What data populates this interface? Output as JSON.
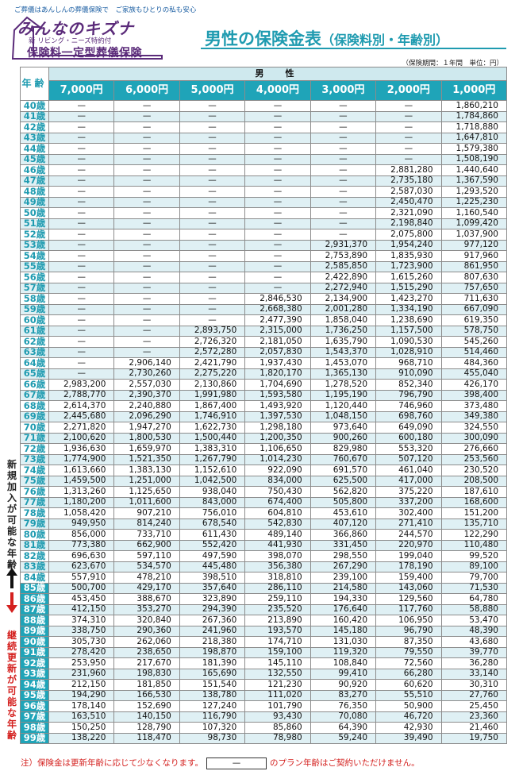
{
  "header": {
    "tagline": "ご葬儀はあんしんの葬儀保険で　ご家族もひとりの私も安心",
    "brand_name": "みんなのキズナ",
    "product_sub": "新 リビング・ニーズ特約付",
    "product_name": "保険料一定型葬儀保険",
    "title_main": "男性の保険金表",
    "title_sub": "（保険料別・年齢別）",
    "period_note": "（保険期間：１年間　単位：円）"
  },
  "table": {
    "gender": "男　性",
    "age_header": "年齢",
    "plans": [
      "7,000円",
      "6,000円",
      "5,000円",
      "4,000円",
      "3,000円",
      "2,000円",
      "1,000円"
    ],
    "rows": [
      {
        "age": "40歳",
        "values": [
          "—",
          "—",
          "—",
          "—",
          "—",
          "—",
          "1,860,210"
        ]
      },
      {
        "age": "41歳",
        "values": [
          "—",
          "—",
          "—",
          "—",
          "—",
          "—",
          "1,784,860"
        ]
      },
      {
        "age": "42歳",
        "values": [
          "—",
          "—",
          "—",
          "—",
          "—",
          "—",
          "1,718,880"
        ]
      },
      {
        "age": "43歳",
        "values": [
          "—",
          "—",
          "—",
          "—",
          "—",
          "—",
          "1,647,810"
        ]
      },
      {
        "age": "44歳",
        "values": [
          "—",
          "—",
          "—",
          "—",
          "—",
          "—",
          "1,579,380"
        ]
      },
      {
        "age": "45歳",
        "values": [
          "—",
          "—",
          "—",
          "—",
          "—",
          "—",
          "1,508,190"
        ]
      },
      {
        "age": "46歳",
        "values": [
          "—",
          "—",
          "—",
          "—",
          "—",
          "2,881,280",
          "1,440,640"
        ]
      },
      {
        "age": "47歳",
        "values": [
          "—",
          "—",
          "—",
          "—",
          "—",
          "2,735,180",
          "1,367,590"
        ]
      },
      {
        "age": "48歳",
        "values": [
          "—",
          "—",
          "—",
          "—",
          "—",
          "2,587,030",
          "1,293,520"
        ]
      },
      {
        "age": "49歳",
        "values": [
          "—",
          "—",
          "—",
          "—",
          "—",
          "2,450,470",
          "1,225,230"
        ]
      },
      {
        "age": "50歳",
        "values": [
          "—",
          "—",
          "—",
          "—",
          "—",
          "2,321,090",
          "1,160,540"
        ]
      },
      {
        "age": "51歳",
        "values": [
          "—",
          "—",
          "—",
          "—",
          "—",
          "2,198,840",
          "1,099,420"
        ]
      },
      {
        "age": "52歳",
        "values": [
          "—",
          "—",
          "—",
          "—",
          "—",
          "2,075,800",
          "1,037,900"
        ]
      },
      {
        "age": "53歳",
        "values": [
          "—",
          "—",
          "—",
          "—",
          "2,931,370",
          "1,954,240",
          "977,120"
        ]
      },
      {
        "age": "54歳",
        "values": [
          "—",
          "—",
          "—",
          "—",
          "2,753,890",
          "1,835,930",
          "917,960"
        ]
      },
      {
        "age": "55歳",
        "values": [
          "—",
          "—",
          "—",
          "—",
          "2,585,850",
          "1,723,900",
          "861,950"
        ]
      },
      {
        "age": "56歳",
        "values": [
          "—",
          "—",
          "—",
          "—",
          "2,422,890",
          "1,615,260",
          "807,630"
        ]
      },
      {
        "age": "57歳",
        "values": [
          "—",
          "—",
          "—",
          "—",
          "2,272,940",
          "1,515,290",
          "757,650"
        ]
      },
      {
        "age": "58歳",
        "values": [
          "—",
          "—",
          "—",
          "2,846,530",
          "2,134,900",
          "1,423,270",
          "711,630"
        ]
      },
      {
        "age": "59歳",
        "values": [
          "—",
          "—",
          "—",
          "2,668,380",
          "2,001,280",
          "1,334,190",
          "667,090"
        ]
      },
      {
        "age": "60歳",
        "values": [
          "—",
          "—",
          "—",
          "2,477,390",
          "1,858,040",
          "1,238,690",
          "619,350"
        ]
      },
      {
        "age": "61歳",
        "values": [
          "—",
          "—",
          "2,893,750",
          "2,315,000",
          "1,736,250",
          "1,157,500",
          "578,750"
        ]
      },
      {
        "age": "62歳",
        "values": [
          "—",
          "—",
          "2,726,320",
          "2,181,050",
          "1,635,790",
          "1,090,530",
          "545,260"
        ]
      },
      {
        "age": "63歳",
        "values": [
          "—",
          "—",
          "2,572,280",
          "2,057,830",
          "1,543,370",
          "1,028,910",
          "514,460"
        ]
      },
      {
        "age": "64歳",
        "values": [
          "—",
          "2,906,140",
          "2,421,790",
          "1,937,430",
          "1,453,070",
          "968,710",
          "484,360"
        ]
      },
      {
        "age": "65歳",
        "values": [
          "—",
          "2,730,260",
          "2,275,220",
          "1,820,170",
          "1,365,130",
          "910,090",
          "455,040"
        ]
      },
      {
        "age": "66歳",
        "values": [
          "2,983,200",
          "2,557,030",
          "2,130,860",
          "1,704,690",
          "1,278,520",
          "852,340",
          "426,170"
        ]
      },
      {
        "age": "67歳",
        "values": [
          "2,788,770",
          "2,390,370",
          "1,991,980",
          "1,593,580",
          "1,195,190",
          "796,790",
          "398,400"
        ]
      },
      {
        "age": "68歳",
        "values": [
          "2,614,370",
          "2,240,880",
          "1,867,400",
          "1,493,920",
          "1,120,440",
          "746,960",
          "373,480"
        ]
      },
      {
        "age": "69歳",
        "values": [
          "2,445,680",
          "2,096,290",
          "1,746,910",
          "1,397,530",
          "1,048,150",
          "698,760",
          "349,380"
        ]
      },
      {
        "age": "70歳",
        "values": [
          "2,271,820",
          "1,947,270",
          "1,622,730",
          "1,298,180",
          "973,640",
          "649,090",
          "324,550"
        ]
      },
      {
        "age": "71歳",
        "values": [
          "2,100,620",
          "1,800,530",
          "1,500,440",
          "1,200,350",
          "900,260",
          "600,180",
          "300,090"
        ]
      },
      {
        "age": "72歳",
        "values": [
          "1,936,630",
          "1,659,970",
          "1,383,310",
          "1,106,650",
          "829,980",
          "553,320",
          "276,660"
        ]
      },
      {
        "age": "73歳",
        "values": [
          "1,774,900",
          "1,521,350",
          "1,267,790",
          "1,014,230",
          "760,670",
          "507,120",
          "253,560"
        ]
      },
      {
        "age": "74歳",
        "values": [
          "1,613,660",
          "1,383,130",
          "1,152,610",
          "922,090",
          "691,570",
          "461,040",
          "230,520"
        ]
      },
      {
        "age": "75歳",
        "values": [
          "1,459,500",
          "1,251,000",
          "1,042,500",
          "834,000",
          "625,500",
          "417,000",
          "208,500"
        ]
      },
      {
        "age": "76歳",
        "values": [
          "1,313,260",
          "1,125,650",
          "938,040",
          "750,430",
          "562,820",
          "375,220",
          "187,610"
        ]
      },
      {
        "age": "77歳",
        "values": [
          "1,180,200",
          "1,011,600",
          "843,000",
          "674,400",
          "505,800",
          "337,200",
          "168,600"
        ]
      },
      {
        "age": "78歳",
        "values": [
          "1,058,420",
          "907,210",
          "756,010",
          "604,810",
          "453,610",
          "302,400",
          "151,200"
        ]
      },
      {
        "age": "79歳",
        "values": [
          "949,950",
          "814,240",
          "678,540",
          "542,830",
          "407,120",
          "271,410",
          "135,710"
        ]
      },
      {
        "age": "80歳",
        "values": [
          "856,000",
          "733,710",
          "611,430",
          "489,140",
          "366,860",
          "244,570",
          "122,290"
        ]
      },
      {
        "age": "81歳",
        "values": [
          "773,380",
          "662,900",
          "552,420",
          "441,930",
          "331,450",
          "220,970",
          "110,480"
        ]
      },
      {
        "age": "82歳",
        "values": [
          "696,630",
          "597,110",
          "497,590",
          "398,070",
          "298,550",
          "199,040",
          "99,520"
        ]
      },
      {
        "age": "83歳",
        "values": [
          "623,670",
          "534,570",
          "445,480",
          "356,380",
          "267,290",
          "178,190",
          "89,100"
        ]
      },
      {
        "age": "84歳",
        "values": [
          "557,910",
          "478,210",
          "398,510",
          "318,810",
          "239,100",
          "159,400",
          "79,700"
        ]
      },
      {
        "age": "85歳",
        "values": [
          "500,700",
          "429,170",
          "357,640",
          "286,110",
          "214,580",
          "143,060",
          "71,530"
        ]
      },
      {
        "age": "86歳",
        "values": [
          "453,450",
          "388,670",
          "323,890",
          "259,110",
          "194,330",
          "129,560",
          "64,780"
        ]
      },
      {
        "age": "87歳",
        "values": [
          "412,150",
          "353,270",
          "294,390",
          "235,520",
          "176,640",
          "117,760",
          "58,880"
        ]
      },
      {
        "age": "88歳",
        "values": [
          "374,310",
          "320,840",
          "267,360",
          "213,890",
          "160,420",
          "106,950",
          "53,470"
        ]
      },
      {
        "age": "89歳",
        "values": [
          "338,750",
          "290,360",
          "241,960",
          "193,570",
          "145,180",
          "96,790",
          "48,390"
        ]
      },
      {
        "age": "90歳",
        "values": [
          "305,730",
          "262,060",
          "218,380",
          "174,710",
          "131,030",
          "87,350",
          "43,680"
        ]
      },
      {
        "age": "91歳",
        "values": [
          "278,420",
          "238,650",
          "198,870",
          "159,100",
          "119,320",
          "79,550",
          "39,770"
        ]
      },
      {
        "age": "92歳",
        "values": [
          "253,950",
          "217,670",
          "181,390",
          "145,110",
          "108,840",
          "72,560",
          "36,280"
        ]
      },
      {
        "age": "93歳",
        "values": [
          "231,960",
          "198,830",
          "165,690",
          "132,550",
          "99,410",
          "66,280",
          "33,140"
        ]
      },
      {
        "age": "94歳",
        "values": [
          "212,150",
          "181,850",
          "151,540",
          "121,230",
          "90,920",
          "60,620",
          "30,310"
        ]
      },
      {
        "age": "95歳",
        "values": [
          "194,290",
          "166,530",
          "138,780",
          "111,020",
          "83,270",
          "55,510",
          "27,760"
        ]
      },
      {
        "age": "96歳",
        "values": [
          "178,140",
          "152,690",
          "127,240",
          "101,790",
          "76,350",
          "50,900",
          "25,450"
        ]
      },
      {
        "age": "97歳",
        "values": [
          "163,510",
          "140,150",
          "116,790",
          "93,430",
          "70,080",
          "46,720",
          "23,360"
        ]
      },
      {
        "age": "98歳",
        "values": [
          "150,250",
          "128,790",
          "107,320",
          "85,860",
          "64,390",
          "42,930",
          "21,460"
        ]
      },
      {
        "age": "99歳",
        "values": [
          "138,220",
          "118,470",
          "98,730",
          "78,980",
          "59,240",
          "39,490",
          "19,750"
        ]
      }
    ]
  },
  "side_notes": {
    "new_enrollment": "新規加入が可能な年齢",
    "renewal": "継続更新が可能な年齢"
  },
  "footer": {
    "note_prefix": "注）保険金は更新年齢に応じて少なくなります。",
    "dash": "—",
    "note_suffix": "のプラン年齢はご契約いただけません。"
  },
  "colors": {
    "accent": "#1fa4b8",
    "brand": "#5b2b7a",
    "warning": "#d4211f",
    "shade": "#dff0f4"
  },
  "icons": [
    "up-arrow-icon",
    "down-arrow-icon",
    "logo-emblem-icon"
  ]
}
